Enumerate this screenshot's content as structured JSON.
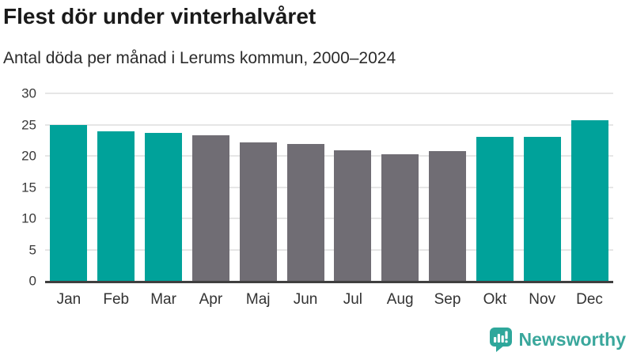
{
  "header": {
    "title": "Flest dör under vinterhalvåret",
    "subtitle": "Antal döda per månad i Lerums kommun, 2000–2024"
  },
  "chart_data": {
    "type": "bar",
    "title": "Flest dör under vinterhalvåret",
    "subtitle": "Antal döda per månad i Lerums kommun, 2000–2024",
    "categories": [
      "Jan",
      "Feb",
      "Mar",
      "Apr",
      "Maj",
      "Jun",
      "Jul",
      "Aug",
      "Sep",
      "Okt",
      "Nov",
      "Dec"
    ],
    "values": [
      25.0,
      23.9,
      23.7,
      23.3,
      22.1,
      21.9,
      20.9,
      20.2,
      20.8,
      23.0,
      23.0,
      25.7
    ],
    "bar_color_keys": [
      "teal",
      "teal",
      "teal",
      "gray",
      "gray",
      "gray",
      "gray",
      "gray",
      "gray",
      "teal",
      "teal",
      "teal"
    ],
    "colors": {
      "teal": "#00a29a",
      "gray": "#706d74"
    },
    "xlabel": "",
    "ylabel": "",
    "ylim": [
      0,
      30
    ],
    "yticks": [
      0,
      5,
      10,
      15,
      20,
      25,
      30
    ],
    "grid": true,
    "legend": false
  },
  "footer": {
    "brand": "Newsworthy",
    "brand_color": "#3aa79c",
    "icon_color": "#2ea79b"
  }
}
